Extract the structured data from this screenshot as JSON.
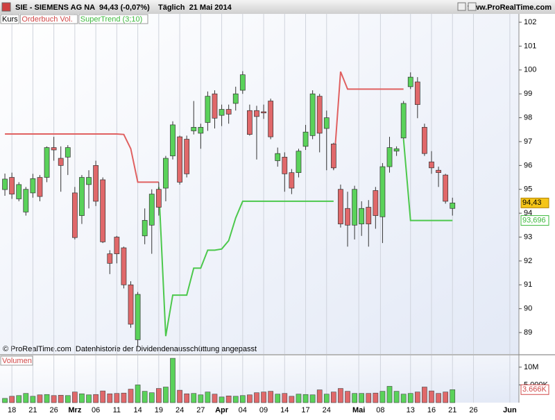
{
  "header": {
    "symbol": "SIE - SIEMENS AG NA",
    "quote": "94,43 (-0,07%)",
    "period": "Täglich  21 Mai 2014",
    "site": "www.ProRealTime.com"
  },
  "footer": "© ProRealTime.com  Datenhistorie der Dividendenausschüttung angepasst",
  "chart_data": [
    {
      "type": "candlestick",
      "legend": [
        "Kurs",
        "Orderbuch Vol."
      ],
      "open": [
        94.99,
        95.5,
        94.6,
        94.05,
        94.85,
        95.5,
        95.5,
        96.75,
        96.3,
        96.35,
        94.85,
        93.9,
        95.2,
        96.0,
        95.4,
        92.3,
        93.0,
        92.55,
        91.0,
        88.7,
        93.05,
        93.5,
        95.0,
        95.05,
        96.4,
        97.2,
        97.1,
        97.45,
        97.35,
        97.8,
        99.0,
        98.1,
        98.35,
        98.6,
        99.15,
        98.3,
        98.3,
        98.25,
        98.7,
        96.2,
        96.35,
        95.7,
        95.7,
        96.8,
        97.25,
        98.9,
        97.55,
        96.9,
        95.0,
        94.2,
        93.5,
        93.55,
        94.25,
        94.95,
        93.85,
        95.95,
        96.6,
        97.15,
        99.3,
        99.5,
        97.6,
        96.15,
        95.8,
        95.6,
        94.2
      ],
      "high": [
        95.66,
        95.7,
        95.3,
        95.1,
        95.65,
        95.6,
        96.8,
        97.2,
        96.8,
        96.85,
        95.1,
        95.6,
        95.8,
        96.2,
        95.5,
        92.45,
        93.05,
        92.6,
        91.15,
        90.7,
        94.2,
        95.0,
        95.3,
        96.4,
        97.85,
        97.25,
        97.25,
        98.7,
        97.75,
        99.1,
        99.15,
        98.55,
        98.55,
        99.3,
        99.95,
        98.55,
        98.5,
        98.55,
        98.8,
        96.75,
        96.55,
        95.85,
        96.7,
        97.7,
        99.15,
        99.0,
        98.3,
        96.95,
        95.2,
        94.9,
        95.15,
        94.5,
        94.55,
        95.1,
        96.1,
        97.2,
        96.8,
        98.7,
        99.9,
        99.7,
        97.75,
        96.6,
        95.95,
        95.65,
        94.65
      ],
      "low": [
        94.73,
        94.6,
        94.5,
        93.9,
        94.65,
        94.5,
        95.3,
        96.2,
        94.9,
        95.6,
        92.9,
        93.55,
        94.2,
        94.3,
        92.75,
        91.45,
        91.9,
        90.85,
        89.2,
        88.4,
        92.7,
        92.3,
        93.9,
        94.5,
        96.25,
        95.2,
        95.5,
        97.3,
        96.7,
        97.45,
        97.55,
        97.65,
        97.75,
        98.3,
        99.0,
        97.25,
        96.25,
        97.95,
        97.1,
        95.95,
        94.9,
        94.8,
        95.5,
        96.65,
        97.1,
        96.55,
        95.8,
        95.8,
        93.4,
        92.6,
        92.9,
        93.05,
        92.6,
        93.35,
        92.75,
        95.7,
        96.4,
        97.1,
        99.2,
        97.98,
        96.4,
        95.65,
        95.1,
        94.4,
        93.9
      ],
      "close": [
        95.43,
        94.8,
        95.2,
        95.0,
        95.45,
        94.7,
        96.75,
        96.65,
        96.0,
        96.75,
        92.98,
        95.5,
        95.5,
        94.5,
        92.8,
        91.9,
        92.3,
        91.0,
        89.35,
        90.6,
        93.7,
        94.8,
        94.25,
        96.3,
        97.7,
        95.3,
        95.65,
        97.6,
        97.6,
        98.9,
        97.98,
        98.35,
        98.15,
        99.0,
        99.8,
        97.3,
        98.05,
        98.2,
        97.2,
        96.5,
        95.65,
        95.05,
        96.6,
        97.4,
        99.0,
        97.35,
        98.0,
        95.9,
        93.55,
        93.5,
        95.0,
        94.2,
        93.55,
        93.9,
        95.95,
        96.75,
        96.7,
        98.6,
        99.7,
        98.55,
        96.5,
        95.9,
        95.7,
        94.5,
        94.43
      ],
      "up_color": "#5ad25a",
      "down_color": "#e0686a",
      "overlay": {
        "name": "SuperTrend (3;10)",
        "up_color": "#4cc84c",
        "down_color": "#e06060",
        "values_down": [
          97.32,
          97.32,
          97.32,
          97.32,
          97.32,
          97.32,
          97.32,
          97.32,
          97.32,
          97.32,
          97.32,
          97.32,
          97.32,
          97.32,
          97.32,
          97.32,
          97.32,
          97.3,
          96.7,
          95.3,
          95.3,
          95.3,
          95.3,
          null,
          null,
          null,
          null,
          null,
          null,
          null,
          null,
          null,
          null,
          null,
          null,
          null,
          null,
          null,
          null,
          null,
          null,
          null,
          null,
          null,
          null,
          null,
          null,
          95.86,
          99.93,
          99.2,
          99.2,
          99.2,
          99.2,
          99.2,
          99.2,
          99.2,
          99.2,
          99.2,
          null,
          null,
          null,
          null,
          null,
          null,
          null
        ],
        "values_up": [
          null,
          null,
          null,
          null,
          null,
          null,
          null,
          null,
          null,
          null,
          null,
          null,
          null,
          null,
          null,
          null,
          null,
          null,
          null,
          null,
          null,
          null,
          95.1,
          88.85,
          90.57,
          90.57,
          90.57,
          91.7,
          91.7,
          92.45,
          92.45,
          92.5,
          92.85,
          93.8,
          94.5,
          94.5,
          94.5,
          94.5,
          94.5,
          94.5,
          94.5,
          94.5,
          94.5,
          94.5,
          94.5,
          94.5,
          94.5,
          94.5,
          null,
          null,
          null,
          null,
          null,
          null,
          null,
          null,
          null,
          97.1,
          93.696,
          93.696,
          93.696,
          93.696,
          93.696,
          93.696,
          93.696
        ],
        "last": {
          "value": 93.696,
          "label": "93,696"
        }
      },
      "last": {
        "value": 94.43,
        "label": "94,43"
      },
      "xlim": [
        -0.7,
        73.5
      ],
      "ylim": [
        88.1,
        102.35
      ],
      "yticks": [
        89,
        90,
        91,
        92,
        93,
        94,
        95,
        96,
        97,
        98,
        99,
        100,
        101,
        102
      ],
      "xticks": [
        {
          "value": 1,
          "label": "18"
        },
        {
          "value": 4,
          "label": "21"
        },
        {
          "value": 7,
          "label": "26"
        },
        {
          "value": 10,
          "label": "Mrz"
        },
        {
          "value": 13,
          "label": "06"
        },
        {
          "value": 16,
          "label": "11"
        },
        {
          "value": 19,
          "label": "14"
        },
        {
          "value": 22,
          "label": "19"
        },
        {
          "value": 25,
          "label": "24"
        },
        {
          "value": 28,
          "label": "27"
        },
        {
          "value": 31,
          "label": "Apr"
        },
        {
          "value": 34,
          "label": "04"
        },
        {
          "value": 37,
          "label": "09"
        },
        {
          "value": 40,
          "label": "14"
        },
        {
          "value": 43,
          "label": "17"
        },
        {
          "value": 46,
          "label": "24"
        },
        {
          "value": 50.6,
          "label": "Mai"
        },
        {
          "value": 53.7,
          "label": "08"
        },
        {
          "value": 58,
          "label": "13"
        },
        {
          "value": 61,
          "label": "16"
        },
        {
          "value": 64,
          "label": "21"
        },
        {
          "value": 67,
          "label": "26"
        },
        {
          "value": 72.2,
          "label": "Jun"
        }
      ],
      "grid": "x"
    },
    {
      "type": "bar",
      "title": "Volumen",
      "values": [
        1.2,
        1.8,
        2.0,
        2.6,
        1.8,
        2.2,
        2.3,
        2.0,
        2.1,
        2.0,
        3.0,
        2.5,
        2.2,
        2.3,
        3.3,
        2.5,
        2.6,
        2.7,
        3.8,
        5.0,
        3.2,
        2.8,
        4.0,
        4.4,
        12.5,
        3.5,
        2.5,
        2.6,
        2.2,
        3.0,
        2.4,
        1.6,
        1.9,
        1.8,
        2.0,
        2.2,
        2.8,
        3.0,
        3.2,
        2.4,
        2.6,
        1.8,
        2.4,
        2.3,
        2.2,
        3.6,
        2.4,
        3.0,
        4.0,
        3.2,
        2.6,
        2.6,
        2.6,
        2.7,
        3.2,
        4.6,
        3.2,
        2.4,
        2.6,
        3.0,
        4.4,
        3.3,
        2.6,
        3.0,
        3.666
      ],
      "ylim": [
        0,
        13.3
      ],
      "yticks": [
        {
          "value": 10,
          "label": "10M"
        },
        {
          "value": 5,
          "label": "5.000K"
        }
      ],
      "last": {
        "value": 3.666,
        "label": "3.666K"
      }
    }
  ]
}
